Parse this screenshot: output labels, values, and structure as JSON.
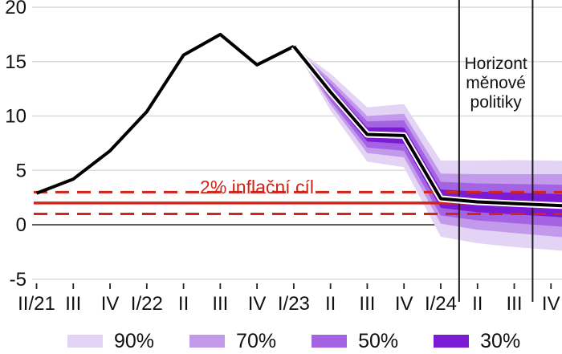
{
  "chart_data": {
    "type": "line",
    "subtype": "fan-chart",
    "title": "",
    "xlabel": "",
    "ylabel": "",
    "ylim": [
      -5,
      20
    ],
    "y_ticks": [
      20,
      15,
      10,
      5,
      0,
      -5
    ],
    "categories": [
      "II/21",
      "III",
      "IV",
      "I/22",
      "II",
      "III",
      "IV",
      "I/23",
      "II",
      "III",
      "IV",
      "I/24",
      "II",
      "III",
      "IV"
    ],
    "history": {
      "categories": [
        "II/21",
        "III",
        "IV",
        "I/22",
        "II",
        "III",
        "IV",
        "I/23"
      ],
      "values": [
        2.9,
        4.2,
        6.8,
        10.4,
        15.6,
        17.5,
        14.7,
        16.4
      ]
    },
    "forecast": {
      "categories": [
        "II/23",
        "III/23",
        "IV/23",
        "I/24",
        "II/24",
        "III/24",
        "IV/24"
      ],
      "values": [
        12.2,
        8.3,
        8.2,
        2.4,
        2.1,
        1.95,
        1.8
      ]
    },
    "fan_bands": [
      {
        "label": "90%",
        "color": "#e3d3f4",
        "half_widths": [
          1.7,
          2.5,
          2.9,
          3.5,
          3.8,
          4.0,
          4.1
        ]
      },
      {
        "label": "70%",
        "color": "#c299eb",
        "half_widths": [
          1.15,
          1.7,
          2.0,
          2.3,
          2.55,
          2.7,
          2.85
        ]
      },
      {
        "label": "50%",
        "color": "#a463e2",
        "half_widths": [
          0.8,
          1.2,
          1.4,
          1.55,
          1.7,
          1.8,
          1.9
        ]
      },
      {
        "label": "30%",
        "color": "#7c1bd3",
        "half_widths": [
          0.45,
          0.65,
          0.75,
          0.85,
          0.95,
          1.0,
          1.05
        ]
      }
    ],
    "inflation_target": {
      "label": "2% inflační cíl",
      "target_value": 2,
      "tolerance_upper": 3,
      "tolerance_lower": 1,
      "color": "#d1251b"
    },
    "horizon": {
      "label_lines": [
        "Horizont",
        "měnové",
        "politiky"
      ],
      "from_category_index": 11.5,
      "to_category_index": 13.5
    },
    "grid": true,
    "legend_position": "bottom"
  },
  "legend": {
    "items": [
      {
        "label": "90%",
        "color": "#e3d3f4"
      },
      {
        "label": "70%",
        "color": "#c299eb"
      },
      {
        "label": "50%",
        "color": "#a463e2"
      },
      {
        "label": "30%",
        "color": "#7c1bd3"
      }
    ]
  },
  "colors": {
    "history_line": "#000000",
    "forecast_line": "#000000",
    "forecast_outline": "#ffffff",
    "gridline": "#dcdcdc",
    "zero_line": "#2b2b2b",
    "axis_text": "#111111",
    "target_red": "#d1251b",
    "horizon_line": "#1a1a1a"
  }
}
